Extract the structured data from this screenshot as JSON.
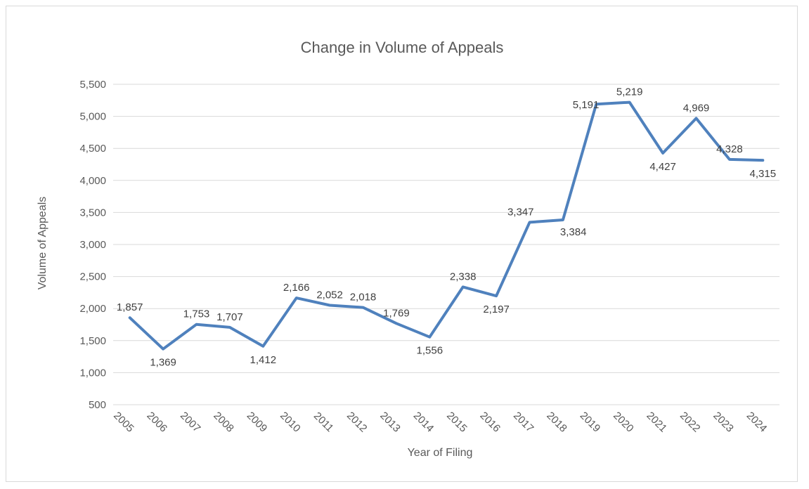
{
  "chart_data": {
    "type": "line",
    "title": "Change in Volume of Appeals",
    "xlabel": "Year of Filing",
    "ylabel": "Volume of Appeals",
    "ylim": [
      500,
      5500
    ],
    "yticks": [
      500,
      1000,
      1500,
      2000,
      2500,
      3000,
      3500,
      4000,
      4500,
      5000,
      5500
    ],
    "grid": true,
    "legend": "none",
    "line_color": "#4f81bd",
    "categories": [
      "2005",
      "2006",
      "2007",
      "2008",
      "2009",
      "2010",
      "2011",
      "2012",
      "2013",
      "2014",
      "2015",
      "2016",
      "2017",
      "2018",
      "2019",
      "2020",
      "2021",
      "2022",
      "2023",
      "2024"
    ],
    "values": [
      1857,
      1369,
      1753,
      1707,
      1412,
      2166,
      2052,
      2018,
      1769,
      1556,
      2338,
      2197,
      3347,
      3384,
      5191,
      5219,
      4427,
      4969,
      4328,
      4315
    ],
    "data_labels": [
      "1,857",
      "1,369",
      "1,753",
      "1,707",
      "1,412",
      "2,166",
      "2,052",
      "2,018",
      "1,769",
      "1,556",
      "2,338",
      "2,197",
      "3,347",
      "3,384",
      "5,191",
      "5,219",
      "4,427",
      "4,969",
      "4,328",
      "4,315"
    ],
    "ytick_labels": [
      "500",
      "1,000",
      "1,500",
      "2,000",
      "2,500",
      "3,000",
      "3,500",
      "4,000",
      "4,500",
      "5,000",
      "5,500"
    ]
  }
}
